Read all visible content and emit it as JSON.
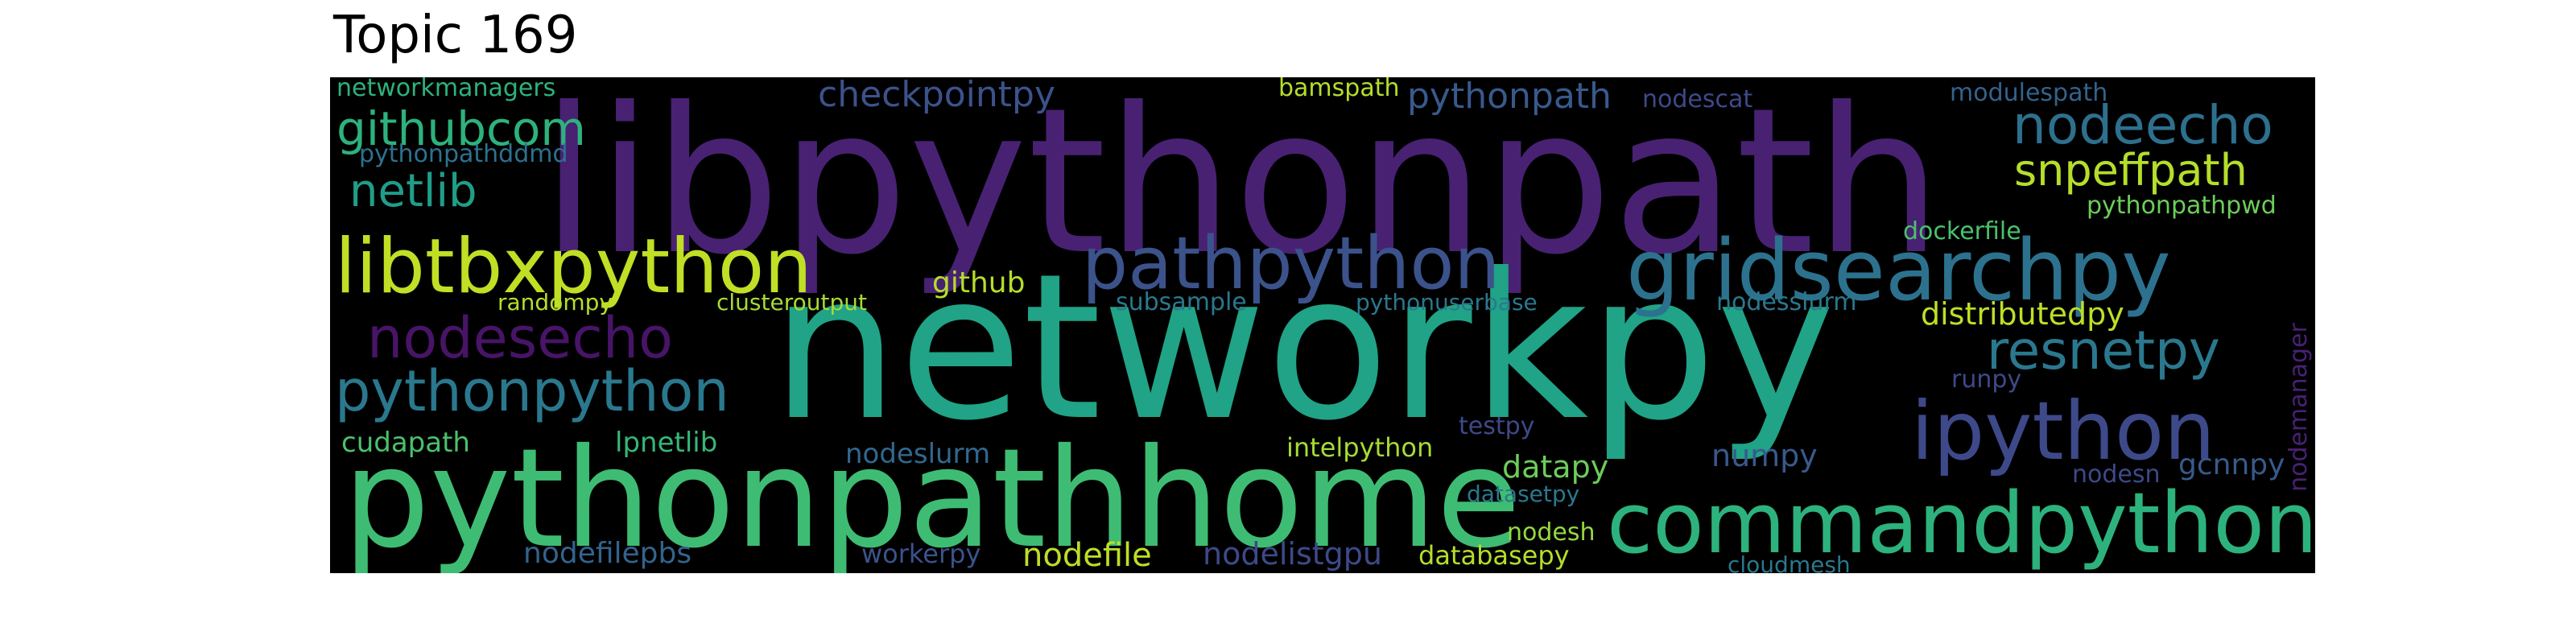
{
  "title": "Topic 169",
  "colors": {
    "background": "#000000",
    "title": "#000000",
    "page": "#ffffff"
  },
  "words": [
    {
      "text": "libpythonpath",
      "color": "#482173"
    },
    {
      "text": "networkpy",
      "color": "#20a386"
    },
    {
      "text": "pythonpathhome",
      "color": "#3fbc73"
    },
    {
      "text": "commandpython",
      "color": "#2db27d"
    },
    {
      "text": "gridsearchpy",
      "color": "#2c728e"
    },
    {
      "text": "libtbxpython",
      "color": "#c0df25"
    },
    {
      "text": "pathpython",
      "color": "#3b528b"
    },
    {
      "text": "ipython",
      "color": "#3e4989"
    },
    {
      "text": "pythonpython",
      "color": "#2a788e"
    },
    {
      "text": "nodesecho",
      "color": "#481467"
    },
    {
      "text": "resnetpy",
      "color": "#2a788e"
    },
    {
      "text": "nodeecho",
      "color": "#2d708e"
    },
    {
      "text": "githubcom",
      "color": "#2db27d"
    },
    {
      "text": "snpeffpath",
      "color": "#b5de2b"
    },
    {
      "text": "netlib",
      "color": "#1f9e89"
    },
    {
      "text": "checkpointpy",
      "color": "#3b528b"
    },
    {
      "text": "pythonpath",
      "color": "#38598c"
    },
    {
      "text": "nodefile",
      "color": "#bddf26"
    },
    {
      "text": "datapy",
      "color": "#6ccd5a"
    },
    {
      "text": "numpy",
      "color": "#38598c"
    },
    {
      "text": "distributedpy",
      "color": "#bddf26"
    },
    {
      "text": "cudapath",
      "color": "#4ac16d"
    },
    {
      "text": "lpnetlib",
      "color": "#35b779"
    },
    {
      "text": "nodeslurm",
      "color": "#31688e"
    },
    {
      "text": "intelpython",
      "color": "#a5db36"
    },
    {
      "text": "nodelistgpu",
      "color": "#3e4989"
    },
    {
      "text": "nodefilepbs",
      "color": "#33638d"
    },
    {
      "text": "github",
      "color": "#b5de2b"
    },
    {
      "text": "gcnnpy",
      "color": "#375a8c"
    },
    {
      "text": "nodesh",
      "color": "#95d840"
    },
    {
      "text": "databasepy",
      "color": "#b5de2b"
    },
    {
      "text": "networkmanagers",
      "color": "#2db27d"
    },
    {
      "text": "pythonpathddmd",
      "color": "#2c728e"
    },
    {
      "text": "bamspath",
      "color": "#b5de2b"
    },
    {
      "text": "nodescat",
      "color": "#3e4989"
    },
    {
      "text": "modulespath",
      "color": "#33638d"
    },
    {
      "text": "pythonpathpwd",
      "color": "#6ccd5a"
    },
    {
      "text": "dockerfile",
      "color": "#4ac16d"
    },
    {
      "text": "randompy",
      "color": "#b5de2b"
    },
    {
      "text": "clusteroutput",
      "color": "#a5db36"
    },
    {
      "text": "subsample",
      "color": "#2a788e"
    },
    {
      "text": "pythonuserbase",
      "color": "#2a788e"
    },
    {
      "text": "nodesslurm",
      "color": "#2a788e"
    },
    {
      "text": "runpy",
      "color": "#3e4989"
    },
    {
      "text": "testpy",
      "color": "#3e4989"
    },
    {
      "text": "datasetpy",
      "color": "#2a788e"
    },
    {
      "text": "nodesn",
      "color": "#3e4989"
    },
    {
      "text": "workerpy",
      "color": "#3b528b"
    },
    {
      "text": "cloudmesh",
      "color": "#2a788e"
    },
    {
      "text": "nodemanager",
      "color": "#482173"
    }
  ]
}
